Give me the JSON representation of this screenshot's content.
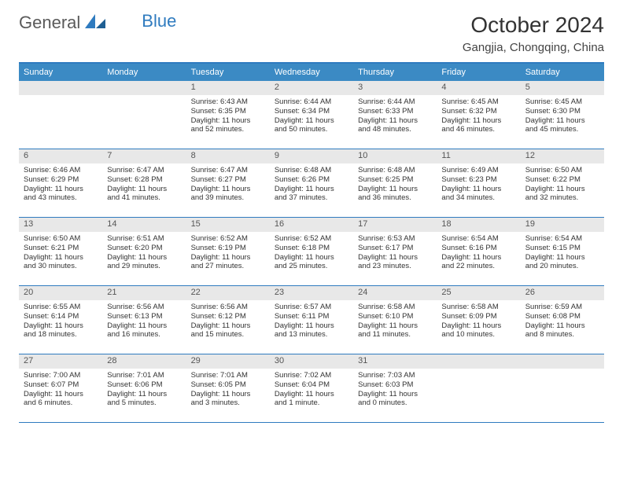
{
  "brand": {
    "part1": "General",
    "part2": "Blue"
  },
  "title": "October 2024",
  "location": "Gangjia, Chongqing, China",
  "colors": {
    "header_bg": "#3b8ac4",
    "border": "#2f7bbf",
    "daynum_bg": "#e8e8e8",
    "text": "#333333",
    "brand_gray": "#5a5a5a",
    "brand_blue": "#2f7bbf"
  },
  "weekdays": [
    "Sunday",
    "Monday",
    "Tuesday",
    "Wednesday",
    "Thursday",
    "Friday",
    "Saturday"
  ],
  "weeks": [
    [
      {
        "n": "",
        "sr": "",
        "ss": "",
        "dl": ""
      },
      {
        "n": "",
        "sr": "",
        "ss": "",
        "dl": ""
      },
      {
        "n": "1",
        "sr": "Sunrise: 6:43 AM",
        "ss": "Sunset: 6:35 PM",
        "dl": "Daylight: 11 hours and 52 minutes."
      },
      {
        "n": "2",
        "sr": "Sunrise: 6:44 AM",
        "ss": "Sunset: 6:34 PM",
        "dl": "Daylight: 11 hours and 50 minutes."
      },
      {
        "n": "3",
        "sr": "Sunrise: 6:44 AM",
        "ss": "Sunset: 6:33 PM",
        "dl": "Daylight: 11 hours and 48 minutes."
      },
      {
        "n": "4",
        "sr": "Sunrise: 6:45 AM",
        "ss": "Sunset: 6:32 PM",
        "dl": "Daylight: 11 hours and 46 minutes."
      },
      {
        "n": "5",
        "sr": "Sunrise: 6:45 AM",
        "ss": "Sunset: 6:30 PM",
        "dl": "Daylight: 11 hours and 45 minutes."
      }
    ],
    [
      {
        "n": "6",
        "sr": "Sunrise: 6:46 AM",
        "ss": "Sunset: 6:29 PM",
        "dl": "Daylight: 11 hours and 43 minutes."
      },
      {
        "n": "7",
        "sr": "Sunrise: 6:47 AM",
        "ss": "Sunset: 6:28 PM",
        "dl": "Daylight: 11 hours and 41 minutes."
      },
      {
        "n": "8",
        "sr": "Sunrise: 6:47 AM",
        "ss": "Sunset: 6:27 PM",
        "dl": "Daylight: 11 hours and 39 minutes."
      },
      {
        "n": "9",
        "sr": "Sunrise: 6:48 AM",
        "ss": "Sunset: 6:26 PM",
        "dl": "Daylight: 11 hours and 37 minutes."
      },
      {
        "n": "10",
        "sr": "Sunrise: 6:48 AM",
        "ss": "Sunset: 6:25 PM",
        "dl": "Daylight: 11 hours and 36 minutes."
      },
      {
        "n": "11",
        "sr": "Sunrise: 6:49 AM",
        "ss": "Sunset: 6:23 PM",
        "dl": "Daylight: 11 hours and 34 minutes."
      },
      {
        "n": "12",
        "sr": "Sunrise: 6:50 AM",
        "ss": "Sunset: 6:22 PM",
        "dl": "Daylight: 11 hours and 32 minutes."
      }
    ],
    [
      {
        "n": "13",
        "sr": "Sunrise: 6:50 AM",
        "ss": "Sunset: 6:21 PM",
        "dl": "Daylight: 11 hours and 30 minutes."
      },
      {
        "n": "14",
        "sr": "Sunrise: 6:51 AM",
        "ss": "Sunset: 6:20 PM",
        "dl": "Daylight: 11 hours and 29 minutes."
      },
      {
        "n": "15",
        "sr": "Sunrise: 6:52 AM",
        "ss": "Sunset: 6:19 PM",
        "dl": "Daylight: 11 hours and 27 minutes."
      },
      {
        "n": "16",
        "sr": "Sunrise: 6:52 AM",
        "ss": "Sunset: 6:18 PM",
        "dl": "Daylight: 11 hours and 25 minutes."
      },
      {
        "n": "17",
        "sr": "Sunrise: 6:53 AM",
        "ss": "Sunset: 6:17 PM",
        "dl": "Daylight: 11 hours and 23 minutes."
      },
      {
        "n": "18",
        "sr": "Sunrise: 6:54 AM",
        "ss": "Sunset: 6:16 PM",
        "dl": "Daylight: 11 hours and 22 minutes."
      },
      {
        "n": "19",
        "sr": "Sunrise: 6:54 AM",
        "ss": "Sunset: 6:15 PM",
        "dl": "Daylight: 11 hours and 20 minutes."
      }
    ],
    [
      {
        "n": "20",
        "sr": "Sunrise: 6:55 AM",
        "ss": "Sunset: 6:14 PM",
        "dl": "Daylight: 11 hours and 18 minutes."
      },
      {
        "n": "21",
        "sr": "Sunrise: 6:56 AM",
        "ss": "Sunset: 6:13 PM",
        "dl": "Daylight: 11 hours and 16 minutes."
      },
      {
        "n": "22",
        "sr": "Sunrise: 6:56 AM",
        "ss": "Sunset: 6:12 PM",
        "dl": "Daylight: 11 hours and 15 minutes."
      },
      {
        "n": "23",
        "sr": "Sunrise: 6:57 AM",
        "ss": "Sunset: 6:11 PM",
        "dl": "Daylight: 11 hours and 13 minutes."
      },
      {
        "n": "24",
        "sr": "Sunrise: 6:58 AM",
        "ss": "Sunset: 6:10 PM",
        "dl": "Daylight: 11 hours and 11 minutes."
      },
      {
        "n": "25",
        "sr": "Sunrise: 6:58 AM",
        "ss": "Sunset: 6:09 PM",
        "dl": "Daylight: 11 hours and 10 minutes."
      },
      {
        "n": "26",
        "sr": "Sunrise: 6:59 AM",
        "ss": "Sunset: 6:08 PM",
        "dl": "Daylight: 11 hours and 8 minutes."
      }
    ],
    [
      {
        "n": "27",
        "sr": "Sunrise: 7:00 AM",
        "ss": "Sunset: 6:07 PM",
        "dl": "Daylight: 11 hours and 6 minutes."
      },
      {
        "n": "28",
        "sr": "Sunrise: 7:01 AM",
        "ss": "Sunset: 6:06 PM",
        "dl": "Daylight: 11 hours and 5 minutes."
      },
      {
        "n": "29",
        "sr": "Sunrise: 7:01 AM",
        "ss": "Sunset: 6:05 PM",
        "dl": "Daylight: 11 hours and 3 minutes."
      },
      {
        "n": "30",
        "sr": "Sunrise: 7:02 AM",
        "ss": "Sunset: 6:04 PM",
        "dl": "Daylight: 11 hours and 1 minute."
      },
      {
        "n": "31",
        "sr": "Sunrise: 7:03 AM",
        "ss": "Sunset: 6:03 PM",
        "dl": "Daylight: 11 hours and 0 minutes."
      },
      {
        "n": "",
        "sr": "",
        "ss": "",
        "dl": ""
      },
      {
        "n": "",
        "sr": "",
        "ss": "",
        "dl": ""
      }
    ]
  ]
}
